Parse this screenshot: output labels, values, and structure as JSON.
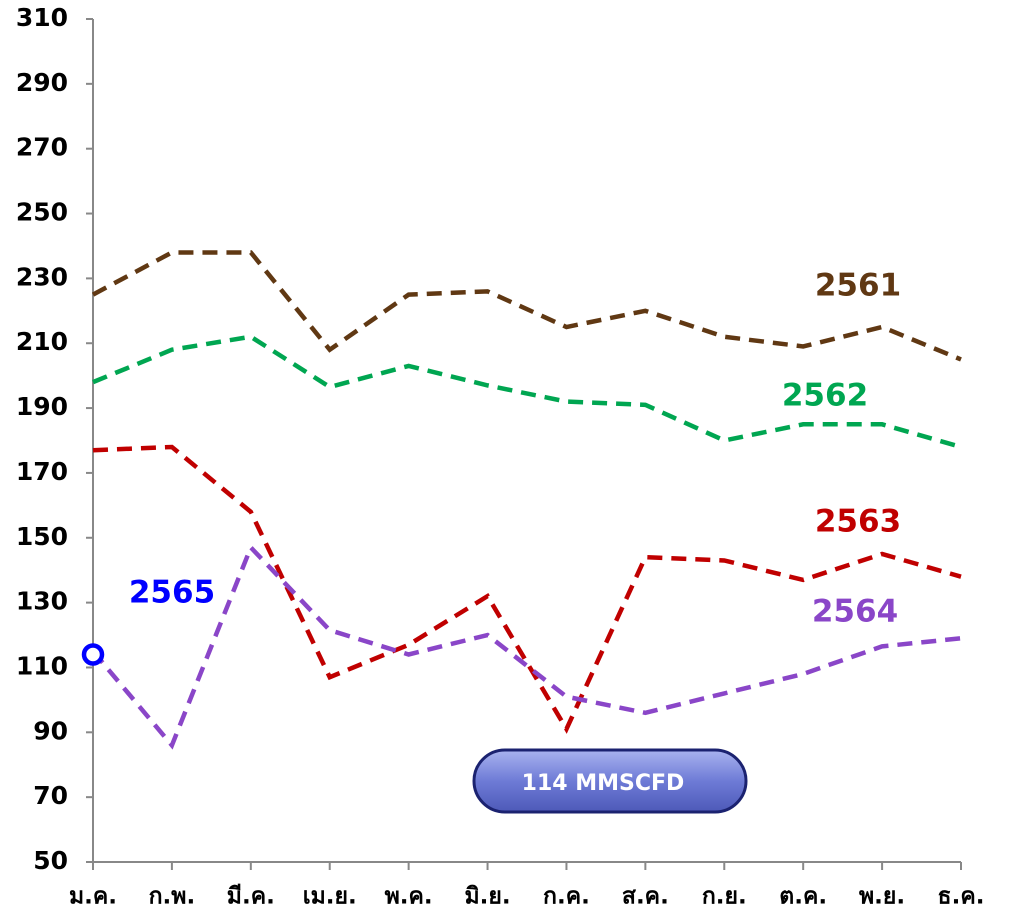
{
  "chart_data": {
    "type": "line",
    "categories": [
      "ม.ค.",
      "ก.พ.",
      "มี.ค.",
      "เม.ย.",
      "พ.ค.",
      "มิ.ย.",
      "ก.ค.",
      "ส.ค.",
      "ก.ย.",
      "ต.ค.",
      "พ.ย.",
      "ธ.ค."
    ],
    "series": [
      {
        "name": "2561",
        "color": "#603813",
        "values": [
          225,
          238,
          238,
          208,
          225,
          226,
          215,
          220,
          212,
          209,
          215,
          205
        ]
      },
      {
        "name": "2562",
        "color": "#00a651",
        "values": [
          198,
          208,
          212,
          196.5,
          203,
          197,
          192,
          191,
          180,
          185,
          185,
          178
        ]
      },
      {
        "name": "2563",
        "color": "#c00000",
        "values": [
          177,
          178,
          158,
          107,
          117,
          132,
          91,
          144,
          143,
          137,
          145,
          138
        ]
      },
      {
        "name": "2564",
        "color": "#8a46c8",
        "values": [
          115,
          86,
          147,
          121.5,
          114,
          120,
          101,
          96,
          102,
          108,
          116.5,
          119
        ]
      },
      {
        "name": "2565",
        "color": "#0000ff",
        "values": [
          114,
          null,
          null,
          null,
          null,
          null,
          null,
          null,
          null,
          null,
          null,
          null
        ]
      }
    ],
    "annotation": "114  MMSCFD",
    "ylim": [
      50,
      310
    ],
    "yticks": [
      50,
      70,
      90,
      110,
      130,
      150,
      170,
      190,
      210,
      230,
      250,
      270,
      290,
      310
    ],
    "grid": false
  }
}
